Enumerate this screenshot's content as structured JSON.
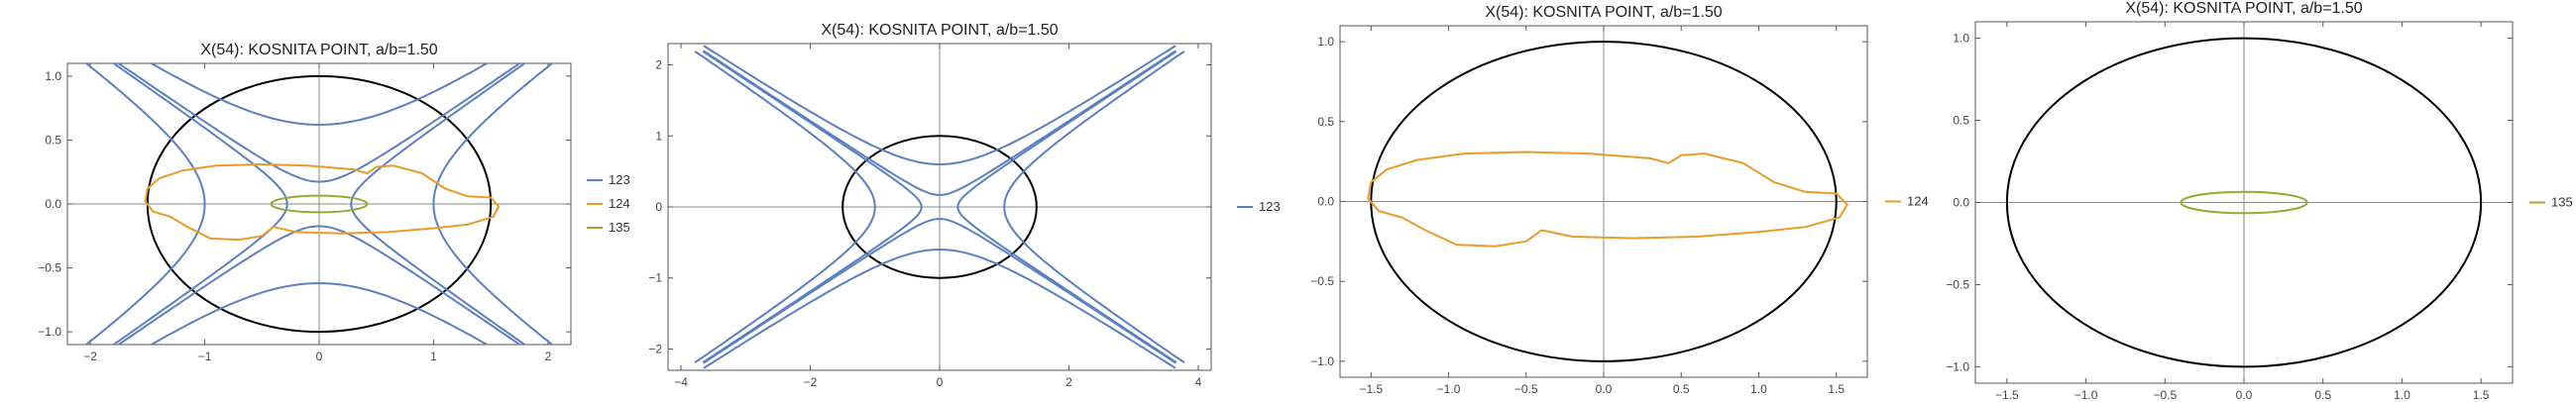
{
  "colors": {
    "123": "#5b7fbf",
    "124": "#e79b2b",
    "135": "#8fac34",
    "ellipse": "#000000"
  },
  "chart_data": [
    {
      "type": "line",
      "title": "X(54): KOSNITA POINT, a/b=1.50",
      "xlim": [
        -2.2,
        2.2
      ],
      "ylim": [
        -1.1,
        1.1
      ],
      "xticks": [
        -2,
        -1,
        0,
        1,
        2
      ],
      "xtick_labels": [
        "−2",
        "−1",
        "0",
        "1",
        "2"
      ],
      "yticks": [
        -1.0,
        -0.5,
        0.0,
        0.5,
        1.0
      ],
      "ytick_labels": [
        "−1.0",
        "−0.5",
        "0.0",
        "0.5",
        "1.0"
      ],
      "ellipse": {
        "a": 1.5,
        "b": 1.0
      },
      "legend": [
        "123",
        "124",
        "135"
      ],
      "series": [
        {
          "name": "123",
          "kind": "hyperbola_family",
          "slope": 0.62,
          "offsets": [
            0.28,
            1.0
          ],
          "extent": 1.95
        },
        {
          "name": "124",
          "kind": "closed_curve",
          "points": [
            [
              -1.52,
              0.02
            ],
            [
              -1.5,
              0.12
            ],
            [
              -1.4,
              0.2
            ],
            [
              -1.2,
              0.26
            ],
            [
              -0.9,
              0.3
            ],
            [
              -0.5,
              0.31
            ],
            [
              -0.1,
              0.3
            ],
            [
              0.3,
              0.27
            ],
            [
              0.42,
              0.24
            ],
            [
              0.5,
              0.29
            ],
            [
              0.65,
              0.3
            ],
            [
              0.9,
              0.24
            ],
            [
              1.1,
              0.12
            ],
            [
              1.3,
              0.06
            ],
            [
              1.5,
              0.05
            ],
            [
              1.57,
              -0.02
            ],
            [
              1.52,
              -0.1
            ],
            [
              1.3,
              -0.16
            ],
            [
              1.0,
              -0.19
            ],
            [
              0.6,
              -0.22
            ],
            [
              0.2,
              -0.23
            ],
            [
              -0.2,
              -0.22
            ],
            [
              -0.4,
              -0.18
            ],
            [
              -0.5,
              -0.25
            ],
            [
              -0.7,
              -0.28
            ],
            [
              -0.95,
              -0.27
            ],
            [
              -1.15,
              -0.18
            ],
            [
              -1.3,
              -0.1
            ],
            [
              -1.45,
              -0.06
            ],
            [
              -1.52,
              0.02
            ]
          ]
        },
        {
          "name": "135",
          "kind": "ellipse",
          "rx": 0.42,
          "ry": 0.065
        }
      ]
    },
    {
      "type": "line",
      "title": "X(54): KOSNITA POINT, a/b=1.50",
      "xlim": [
        -4.2,
        4.2
      ],
      "ylim": [
        -2.3,
        2.3
      ],
      "xticks": [
        -4,
        -2,
        0,
        2,
        4
      ],
      "xtick_labels": [
        "−4",
        "−2",
        "0",
        "2",
        "4"
      ],
      "yticks": [
        -2,
        -1,
        0,
        1,
        2
      ],
      "ytick_labels": [
        "−2",
        "−1",
        "0",
        "1",
        "2"
      ],
      "ellipse": {
        "a": 1.5,
        "b": 1.0
      },
      "legend": [
        "123"
      ],
      "series": [
        {
          "name": "123",
          "kind": "hyperbola_family",
          "slope": 0.6,
          "offsets": [
            0.28,
            1.0
          ],
          "extent": 3.65
        }
      ]
    },
    {
      "type": "line",
      "title": "X(54): KOSNITA POINT, a/b=1.50",
      "xlim": [
        -1.7,
        1.7
      ],
      "ylim": [
        -1.1,
        1.1
      ],
      "xticks": [
        -1.5,
        -1.0,
        -0.5,
        0.0,
        0.5,
        1.0,
        1.5
      ],
      "xtick_labels": [
        "−1.5",
        "−1.0",
        "−0.5",
        "0.0",
        "0.5",
        "1.0",
        "1.5"
      ],
      "yticks": [
        -1.0,
        -0.5,
        0.0,
        0.5,
        1.0
      ],
      "ytick_labels": [
        "−1.0",
        "−0.5",
        "0.0",
        "0.5",
        "1.0"
      ],
      "ellipse": {
        "a": 1.5,
        "b": 1.0
      },
      "legend": [
        "124"
      ],
      "series": [
        {
          "name": "124",
          "kind": "closed_curve",
          "points": [
            [
              -1.52,
              0.02
            ],
            [
              -1.5,
              0.12
            ],
            [
              -1.4,
              0.2
            ],
            [
              -1.2,
              0.26
            ],
            [
              -0.9,
              0.3
            ],
            [
              -0.5,
              0.31
            ],
            [
              -0.1,
              0.3
            ],
            [
              0.3,
              0.27
            ],
            [
              0.42,
              0.24
            ],
            [
              0.5,
              0.29
            ],
            [
              0.65,
              0.3
            ],
            [
              0.9,
              0.24
            ],
            [
              1.1,
              0.12
            ],
            [
              1.3,
              0.06
            ],
            [
              1.5,
              0.05
            ],
            [
              1.57,
              -0.02
            ],
            [
              1.52,
              -0.1
            ],
            [
              1.3,
              -0.16
            ],
            [
              1.0,
              -0.19
            ],
            [
              0.6,
              -0.22
            ],
            [
              0.2,
              -0.23
            ],
            [
              -0.2,
              -0.22
            ],
            [
              -0.4,
              -0.18
            ],
            [
              -0.5,
              -0.25
            ],
            [
              -0.7,
              -0.28
            ],
            [
              -0.95,
              -0.27
            ],
            [
              -1.15,
              -0.18
            ],
            [
              -1.3,
              -0.1
            ],
            [
              -1.45,
              -0.06
            ],
            [
              -1.52,
              0.02
            ]
          ]
        }
      ]
    },
    {
      "type": "line",
      "title": "X(54): KOSNITA POINT, a/b=1.50",
      "xlim": [
        -1.7,
        1.7
      ],
      "ylim": [
        -1.1,
        1.1
      ],
      "xticks": [
        -1.5,
        -1.0,
        -0.5,
        0.0,
        0.5,
        1.0,
        1.5
      ],
      "xtick_labels": [
        "−1.5",
        "−1.0",
        "−0.5",
        "0.0",
        "0.5",
        "1.0",
        "1.5"
      ],
      "yticks": [
        -1.0,
        -0.5,
        0.0,
        0.5,
        1.0
      ],
      "ytick_labels": [
        "−1.0",
        "−0.5",
        "0.0",
        "0.5",
        "1.0"
      ],
      "ellipse": {
        "a": 1.5,
        "b": 1.0
      },
      "legend": [
        "135"
      ],
      "series": [
        {
          "name": "135",
          "kind": "ellipse",
          "rx": 0.4,
          "ry": 0.065
        }
      ]
    }
  ]
}
